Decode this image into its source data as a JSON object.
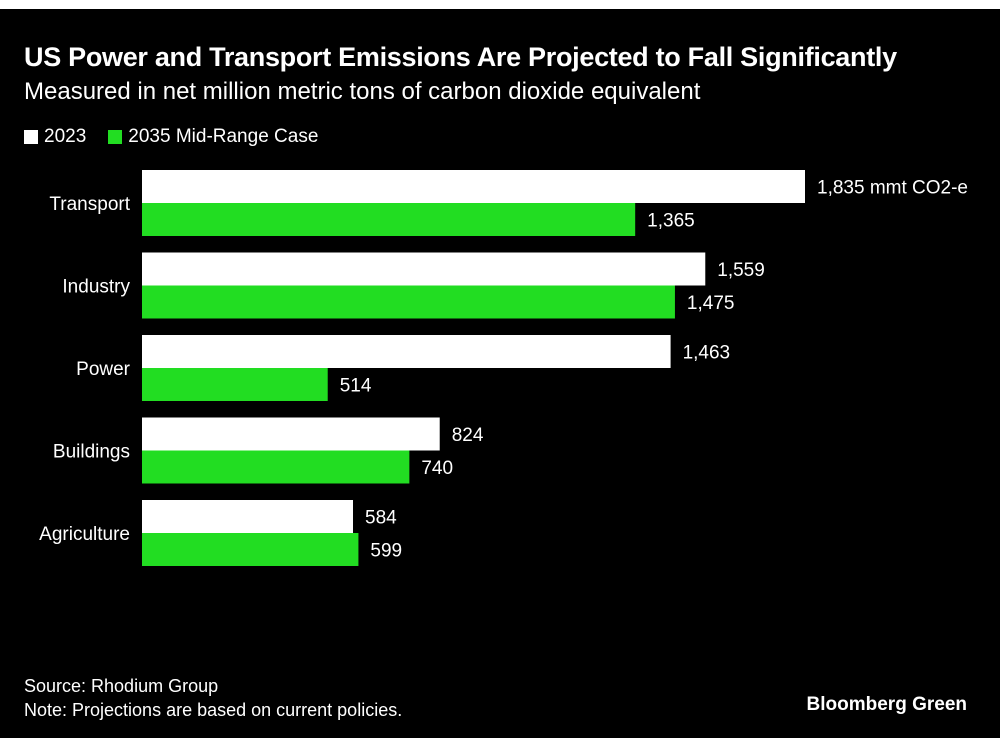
{
  "chart_data": {
    "type": "bar",
    "orientation": "horizontal",
    "title": "US Power and Transport Emissions Are Projected to Fall Significantly",
    "subtitle": "Measured in net million metric tons of carbon dioxide equivalent",
    "categories": [
      "Transport",
      "Industry",
      "Power",
      "Buildings",
      "Agriculture"
    ],
    "series": [
      {
        "name": "2023",
        "color": "#ffffff",
        "values": [
          1835,
          1559,
          1463,
          824,
          584
        ],
        "labels": [
          "1,835 mmt CO2-e",
          "1,559",
          "1,463",
          "824",
          "584"
        ]
      },
      {
        "name": "2035 Mid-Range Case",
        "color": "#22dd22",
        "values": [
          1365,
          1475,
          514,
          740,
          599
        ],
        "labels": [
          "1,365",
          "1,475",
          "514",
          "740",
          "599"
        ]
      }
    ],
    "xlim": [
      0,
      1835
    ],
    "grid": false,
    "legend_position": "top-left"
  },
  "footer": {
    "source": "Source: Rhodium Group",
    "note": "Note: Projections are based on current policies."
  },
  "brand": "Bloomberg Green"
}
